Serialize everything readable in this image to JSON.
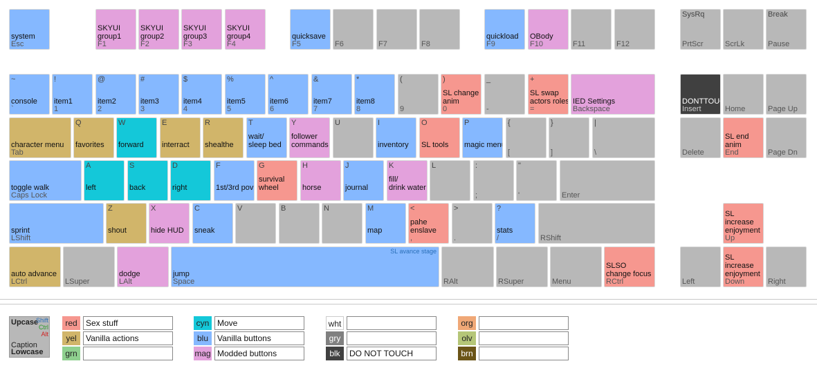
{
  "keys": [
    {
      "id": "esc",
      "cap": "system",
      "low": "Esc",
      "up": "",
      "color": "blu"
    },
    {
      "id": "f1",
      "cap": "SKYUI\ngroup1",
      "low": "F1",
      "up": "",
      "color": "mag"
    },
    {
      "id": "f2",
      "cap": "SKYUI\ngroup2",
      "low": "F2",
      "up": "",
      "color": "mag"
    },
    {
      "id": "f3",
      "cap": "SKYUI\ngroup3",
      "low": "F3",
      "up": "",
      "color": "mag"
    },
    {
      "id": "f4",
      "cap": "SKYUI\ngroup4",
      "low": "F4",
      "up": "",
      "color": "mag"
    },
    {
      "id": "f5",
      "cap": "quicksave",
      "low": "F5",
      "up": "",
      "color": "blu"
    },
    {
      "id": "f6",
      "cap": "",
      "low": "F6",
      "up": "",
      "color": "gry"
    },
    {
      "id": "f7",
      "cap": "",
      "low": "F7",
      "up": "",
      "color": "gry"
    },
    {
      "id": "f8",
      "cap": "",
      "low": "F8",
      "up": "",
      "color": "gry"
    },
    {
      "id": "f9",
      "cap": "quickload",
      "low": "F9",
      "up": "",
      "color": "blu"
    },
    {
      "id": "f10",
      "cap": "OBody",
      "low": "F10",
      "up": "",
      "color": "mag"
    },
    {
      "id": "f11",
      "cap": "",
      "low": "F11",
      "up": "",
      "color": "gry"
    },
    {
      "id": "f12",
      "cap": "",
      "low": "F12",
      "up": "",
      "color": "gry"
    },
    {
      "id": "prtscr",
      "cap": "",
      "low": "PrtScr",
      "up": "SysRq",
      "color": "gry"
    },
    {
      "id": "scrlk",
      "cap": "",
      "low": "ScrLk",
      "up": "",
      "color": "gry"
    },
    {
      "id": "pause",
      "cap": "",
      "low": "Pause",
      "up": "Break",
      "color": "gry"
    },
    {
      "id": "tilde",
      "cap": "console",
      "low": "`",
      "up": "~",
      "color": "blu"
    },
    {
      "id": "k1",
      "cap": "item1",
      "low": "1",
      "up": "!",
      "color": "blu"
    },
    {
      "id": "k2",
      "cap": "item2",
      "low": "2",
      "up": "@",
      "color": "blu"
    },
    {
      "id": "k3",
      "cap": "item3",
      "low": "3",
      "up": "#",
      "color": "blu"
    },
    {
      "id": "k4",
      "cap": "item4",
      "low": "4",
      "up": "$",
      "color": "blu"
    },
    {
      "id": "k5",
      "cap": "item5",
      "low": "5",
      "up": "%",
      "color": "blu"
    },
    {
      "id": "k6",
      "cap": "item6",
      "low": "6",
      "up": "^",
      "color": "blu"
    },
    {
      "id": "k7",
      "cap": "item7",
      "low": "7",
      "up": "&",
      "color": "blu"
    },
    {
      "id": "k8",
      "cap": "item8",
      "low": "8",
      "up": "*",
      "color": "blu"
    },
    {
      "id": "k9",
      "cap": "",
      "low": "9",
      "up": "(",
      "color": "gry"
    },
    {
      "id": "k0",
      "cap": "SL change\nanim",
      "low": "0",
      "up": ")",
      "color": "red"
    },
    {
      "id": "minus",
      "cap": "",
      "low": "-",
      "up": "_",
      "color": "gry"
    },
    {
      "id": "equals",
      "cap": "SL swap\nactors roles",
      "low": "=",
      "up": "+",
      "color": "red"
    },
    {
      "id": "backspace",
      "cap": "IED Settings",
      "low": "Backspace",
      "up": "",
      "color": "mag"
    },
    {
      "id": "insert",
      "cap": "DONTTOUCH",
      "low": "Insert",
      "up": "",
      "color": "blk"
    },
    {
      "id": "home",
      "cap": "",
      "low": "Home",
      "up": "",
      "color": "gry"
    },
    {
      "id": "pageup",
      "cap": "",
      "low": "Page Up",
      "up": "",
      "color": "gry"
    },
    {
      "id": "tab",
      "cap": "character menu",
      "low": "Tab",
      "up": "",
      "color": "yel"
    },
    {
      "id": "q",
      "cap": "favorites",
      "low": "",
      "up": "Q",
      "color": "yel"
    },
    {
      "id": "w",
      "cap": "forward",
      "low": "",
      "up": "W",
      "color": "cyn"
    },
    {
      "id": "e",
      "cap": "interract",
      "low": "",
      "up": "E",
      "color": "yel"
    },
    {
      "id": "r",
      "cap": "shealthe",
      "low": "",
      "up": "R",
      "color": "yel"
    },
    {
      "id": "t",
      "cap": "wait/\nsleep bed",
      "low": "",
      "up": "T",
      "color": "blu"
    },
    {
      "id": "y",
      "cap": "follower\ncommands",
      "low": "",
      "up": "Y",
      "color": "mag"
    },
    {
      "id": "u",
      "cap": "",
      "low": "",
      "up": "U",
      "color": "gry"
    },
    {
      "id": "i",
      "cap": "inventory",
      "low": "",
      "up": "I",
      "color": "blu"
    },
    {
      "id": "o",
      "cap": "SL tools",
      "low": "",
      "up": "O",
      "color": "red"
    },
    {
      "id": "p",
      "cap": "magic menu",
      "low": "",
      "up": "P",
      "color": "blu"
    },
    {
      "id": "lbracket",
      "cap": "",
      "low": "[",
      "up": "{",
      "color": "gry"
    },
    {
      "id": "rbracket",
      "cap": "",
      "low": "]",
      "up": "}",
      "color": "gry"
    },
    {
      "id": "backslash",
      "cap": "",
      "low": "\\",
      "up": "|",
      "color": "gry"
    },
    {
      "id": "delete",
      "cap": "",
      "low": "Delete",
      "up": "",
      "color": "gry"
    },
    {
      "id": "end",
      "cap": "SL end\nanim",
      "low": "End",
      "up": "",
      "color": "red"
    },
    {
      "id": "pagedn",
      "cap": "",
      "low": "Page Dn",
      "up": "",
      "color": "gry"
    },
    {
      "id": "capslock",
      "cap": "toggle walk",
      "low": "Caps Lock",
      "up": "",
      "color": "blu"
    },
    {
      "id": "a",
      "cap": "left",
      "low": "",
      "up": "A",
      "color": "cyn"
    },
    {
      "id": "s",
      "cap": "back",
      "low": "",
      "up": "S",
      "color": "cyn"
    },
    {
      "id": "d",
      "cap": "right",
      "low": "",
      "up": "D",
      "color": "cyn"
    },
    {
      "id": "f",
      "cap": "1st/3rd pov",
      "low": "",
      "up": "F",
      "color": "blu"
    },
    {
      "id": "g",
      "cap": "survival\nwheel",
      "low": "",
      "up": "G",
      "color": "red"
    },
    {
      "id": "h",
      "cap": "horse",
      "low": "",
      "up": "H",
      "color": "mag"
    },
    {
      "id": "j",
      "cap": "journal",
      "low": "",
      "up": "J",
      "color": "blu"
    },
    {
      "id": "k",
      "cap": "fill/\ndrink water",
      "low": "",
      "up": "K",
      "color": "mag"
    },
    {
      "id": "l",
      "cap": "",
      "low": "",
      "up": "L",
      "color": "gry"
    },
    {
      "id": "semicolon",
      "cap": "",
      "low": ";",
      "up": ":",
      "color": "gry"
    },
    {
      "id": "quote",
      "cap": "",
      "low": "'",
      "up": "\"",
      "color": "gry"
    },
    {
      "id": "enter",
      "cap": "",
      "low": "Enter",
      "up": "",
      "color": "gry"
    },
    {
      "id": "lshift",
      "cap": "sprint",
      "low": "LShift",
      "up": "",
      "color": "blu"
    },
    {
      "id": "z",
      "cap": "shout",
      "low": "",
      "up": "Z",
      "color": "yel"
    },
    {
      "id": "x",
      "cap": "hide HUD",
      "low": "",
      "up": "X",
      "color": "mag"
    },
    {
      "id": "c",
      "cap": "sneak",
      "low": "",
      "up": "C",
      "color": "blu"
    },
    {
      "id": "v",
      "cap": "",
      "low": "",
      "up": "V",
      "color": "gry"
    },
    {
      "id": "b",
      "cap": "",
      "low": "",
      "up": "B",
      "color": "gry"
    },
    {
      "id": "n",
      "cap": "",
      "low": "",
      "up": "N",
      "color": "gry"
    },
    {
      "id": "m",
      "cap": "map",
      "low": "",
      "up": "M",
      "color": "blu"
    },
    {
      "id": "comma",
      "cap": "pahe\nenslave",
      "low": ",",
      "up": "<",
      "color": "red"
    },
    {
      "id": "period",
      "cap": "",
      "low": ".",
      "up": ">",
      "color": "gry"
    },
    {
      "id": "slash",
      "cap": "stats",
      "low": "/",
      "up": "?",
      "color": "blu"
    },
    {
      "id": "rshift",
      "cap": "",
      "low": "RShift",
      "up": "",
      "color": "gry"
    },
    {
      "id": "up",
      "cap": "SL\nincrease\nenjoyment",
      "low": "Up",
      "up": "",
      "color": "red"
    },
    {
      "id": "lctrl",
      "cap": "auto advance",
      "low": "LCtrl",
      "up": "",
      "color": "yel"
    },
    {
      "id": "lsuper",
      "cap": "",
      "low": "LSuper",
      "up": "",
      "color": "gry"
    },
    {
      "id": "lalt",
      "cap": "dodge",
      "low": "LAlt",
      "up": "",
      "color": "mag"
    },
    {
      "id": "space",
      "cap": "jump",
      "low": "Space",
      "up": "",
      "note": "SL avance stage",
      "color": "blu"
    },
    {
      "id": "ralt",
      "cap": "",
      "low": "RAlt",
      "up": "",
      "color": "gry"
    },
    {
      "id": "rsuper",
      "cap": "",
      "low": "RSuper",
      "up": "",
      "color": "gry"
    },
    {
      "id": "menu",
      "cap": "",
      "low": "Menu",
      "up": "",
      "color": "gry"
    },
    {
      "id": "rctrl",
      "cap": "SLSO\nchange focus",
      "low": "RCtrl",
      "up": "",
      "color": "red"
    },
    {
      "id": "left",
      "cap": "",
      "low": "Left",
      "up": "",
      "color": "gry"
    },
    {
      "id": "down",
      "cap": "SL\nincrease\nenjoyment",
      "low": "Down",
      "up": "",
      "color": "red"
    },
    {
      "id": "right",
      "cap": "",
      "low": "Right",
      "up": "",
      "color": "gry"
    }
  ],
  "legend": {
    "sample": {
      "upcase": "Upcase",
      "shift": "Shift",
      "ctrl": "Ctrl",
      "alt": "Alt",
      "caption": "Caption",
      "lowcase": "Lowcase"
    },
    "entries": [
      {
        "code": "red",
        "text": "Sex stuff"
      },
      {
        "code": "yel",
        "text": "Vanilla actions"
      },
      {
        "code": "grn",
        "text": ""
      },
      {
        "code": "cyn",
        "text": "Move"
      },
      {
        "code": "blu",
        "text": "Vanilla buttons"
      },
      {
        "code": "mag",
        "text": "Modded buttons"
      },
      {
        "code": "wht",
        "text": ""
      },
      {
        "code": "gry",
        "text": ""
      },
      {
        "code": "blk",
        "text": "DO NOT TOUCH"
      },
      {
        "code": "org",
        "text": ""
      },
      {
        "code": "olv",
        "text": ""
      },
      {
        "code": "brn",
        "text": ""
      }
    ]
  },
  "colors": {
    "blu": "#85b8ff",
    "mag": "#e3a1dc",
    "gry": "#b8b8b8",
    "yel": "#d1b56a",
    "cyn": "#14c8d9",
    "red": "#f6978f",
    "blk": "#404040",
    "grn": "#8fd08f",
    "wht": "#ffffff",
    "org": "#f0a877",
    "olv": "#b5c678",
    "brn": "#6b5417"
  }
}
